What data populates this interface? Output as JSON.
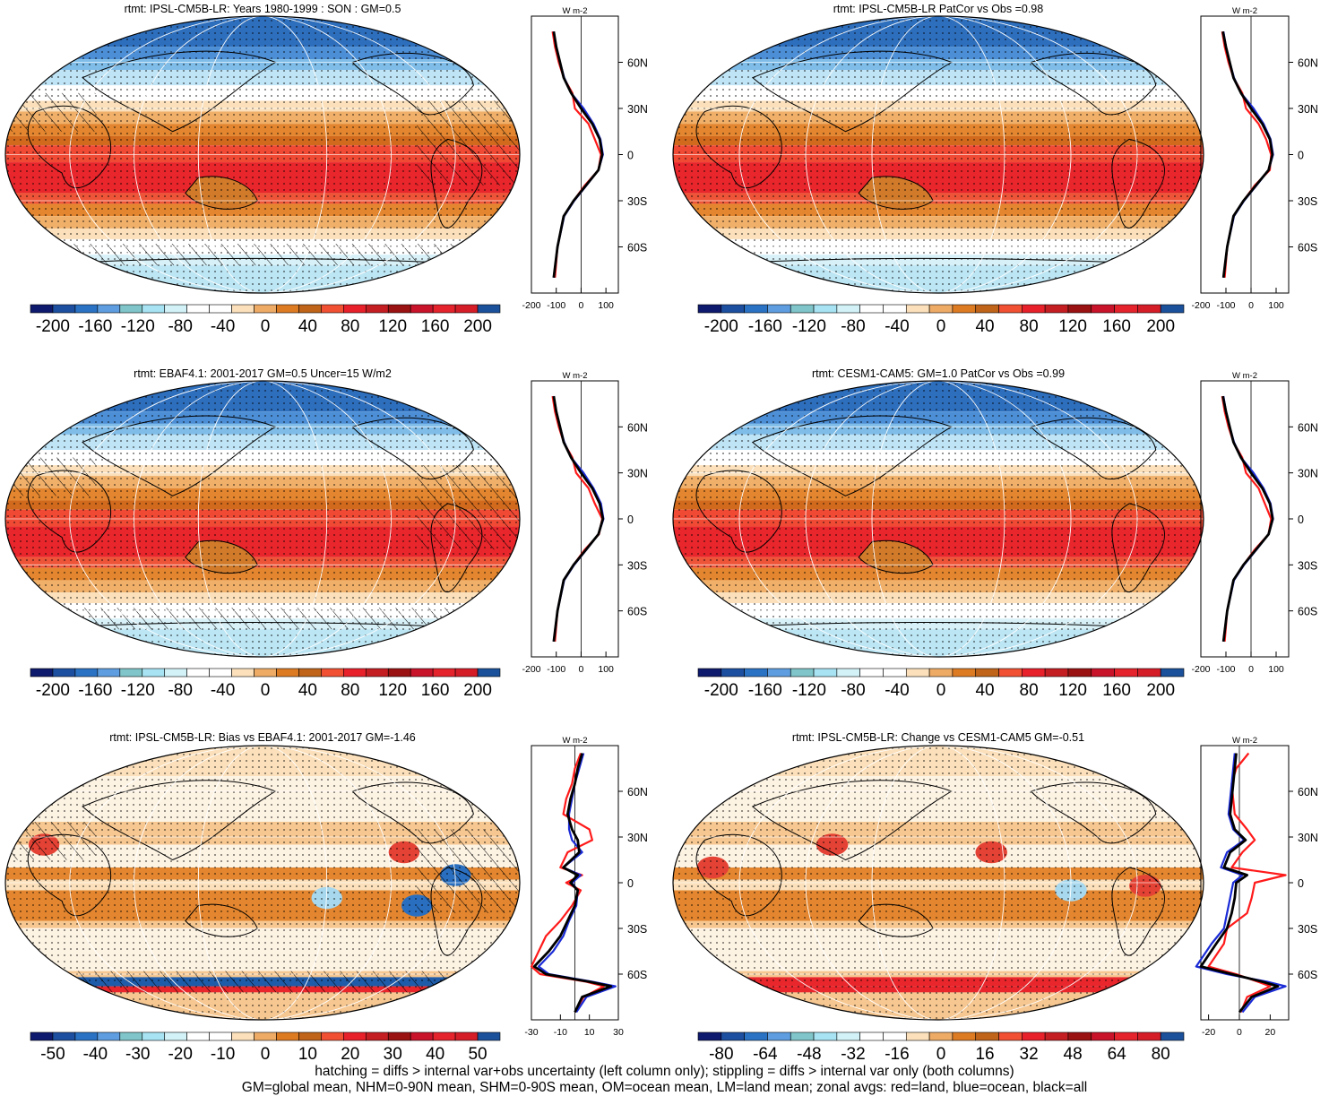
{
  "panels": [
    {
      "title": "rtmt: IPSL-CM5B-LR: Years 1980-1999 : SON : GM=0.5",
      "hatch": true,
      "colorbar_labels": [
        "-200",
        "-160",
        "-120",
        "-80",
        "-40",
        "0",
        "40",
        "80",
        "120",
        "160",
        "200"
      ],
      "profile_xticks": [
        "-200",
        "-100",
        "0",
        "100"
      ],
      "profile_unit": "W m-2"
    },
    {
      "title": "rtmt: IPSL-CM5B-LR PatCor vs Obs =0.98",
      "hatch": false,
      "colorbar_labels": [
        "-200",
        "-160",
        "-120",
        "-80",
        "-40",
        "0",
        "40",
        "80",
        "120",
        "160",
        "200"
      ],
      "profile_xticks": [
        "-200",
        "-100",
        "0",
        "100"
      ],
      "profile_unit": "W m-2"
    },
    {
      "title": "rtmt: EBAF4.1: 2001-2017 GM=0.5 Uncer=15 W/m2",
      "hatch": true,
      "colorbar_labels": [
        "-200",
        "-160",
        "-120",
        "-80",
        "-40",
        "0",
        "40",
        "80",
        "120",
        "160",
        "200"
      ],
      "profile_xticks": [
        "-200",
        "-100",
        "0",
        "100"
      ],
      "profile_unit": "W m-2"
    },
    {
      "title": "rtmt: CESM1-CAM5: GM=1.0 PatCor vs Obs =0.99",
      "hatch": false,
      "colorbar_labels": [
        "-200",
        "-160",
        "-120",
        "-80",
        "-40",
        "0",
        "40",
        "80",
        "120",
        "160",
        "200"
      ],
      "profile_xticks": [
        "-200",
        "-100",
        "0",
        "100"
      ],
      "profile_unit": "W m-2"
    },
    {
      "title": "rtmt: IPSL-CM5B-LR: Bias vs EBAF4.1: 2001-2017  GM=-1.46",
      "hatch": true,
      "colorbar_labels": [
        "-50",
        "-40",
        "-30",
        "-20",
        "-10",
        "0",
        "10",
        "20",
        "30",
        "40",
        "50"
      ],
      "profile_xticks": [
        "-30",
        "-10",
        "10",
        "30"
      ],
      "profile_unit": "W m-2"
    },
    {
      "title": "rtmt: IPSL-CM5B-LR: Change vs CESM1-CAM5 GM=-0.51",
      "hatch": false,
      "colorbar_labels": [
        "-80",
        "-64",
        "-48",
        "-32",
        "-16",
        "0",
        "16",
        "32",
        "48",
        "64",
        "80"
      ],
      "profile_xticks": [
        "-20",
        "0",
        "20"
      ],
      "profile_unit": "W m-2"
    }
  ],
  "lat_labels": [
    "60N",
    "30N",
    "0",
    "30S",
    "60S"
  ],
  "colorbar_colors": [
    "#0e1a6e",
    "#1d4fa0",
    "#2a72c4",
    "#5e9ee0",
    "#7fc5c9",
    "#a7e3f2",
    "#d2f2f8",
    "#ffffff",
    "#ffffff",
    "#fbe0bb",
    "#eeab66",
    "#dd7b22",
    "#bf6419",
    "#f15032",
    "#e8202a",
    "#c51e22",
    "#9a1212",
    "#c8132a",
    "#e4232c",
    "#d51d28",
    "#1b509a"
  ],
  "footer": {
    "line1": "hatching = diffs > internal var+obs uncertainty (left column only); stippling = diffs > internal var only (both columns)",
    "line2": "GM=global mean, NHM=0-90N mean, SHM=0-90S mean, OM=ocean mean, LM=land mean; zonal avgs: red=land, blue=ocean, black=all"
  },
  "chart_data": [
    {
      "type": "line",
      "title": "rtmt: IPSL-CM5B-LR: Years 1980-1999 : SON : GM=0.5",
      "xlabel": "W m-2",
      "y_axis": "latitude",
      "xlim": [
        -200,
        150
      ],
      "ylim": [
        -90,
        90
      ],
      "series": [
        {
          "name": "all",
          "x": [
            -110,
            -100,
            -85,
            -70,
            -40,
            0,
            45,
            75,
            85,
            70,
            20,
            -30,
            -70,
            -95,
            -110
          ],
          "y": [
            80,
            70,
            60,
            50,
            40,
            30,
            20,
            10,
            0,
            -10,
            -20,
            -30,
            -40,
            -60,
            -80
          ]
        },
        {
          "name": "land",
          "x": [
            -115,
            -105,
            -90,
            -70,
            -35,
            -25,
            30,
            55,
            80,
            70,
            15,
            -30,
            -70,
            -95,
            -105
          ],
          "y": [
            80,
            70,
            60,
            50,
            40,
            30,
            20,
            10,
            0,
            -10,
            -20,
            -30,
            -40,
            -60,
            -80
          ]
        },
        {
          "name": "ocean",
          "x": [
            -110,
            -100,
            -85,
            -68,
            -40,
            10,
            50,
            78,
            88,
            70,
            22,
            -28,
            -68,
            -95,
            -110
          ],
          "y": [
            80,
            70,
            60,
            50,
            40,
            30,
            20,
            10,
            0,
            -10,
            -20,
            -30,
            -40,
            -60,
            -80
          ]
        }
      ]
    },
    {
      "type": "line",
      "title": "rtmt: IPSL-CM5B-LR PatCor vs Obs =0.98",
      "xlabel": "W m-2",
      "y_axis": "latitude",
      "xlim": [
        -200,
        150
      ],
      "ylim": [
        -90,
        90
      ],
      "series": [
        {
          "name": "all",
          "x": [
            -112,
            -100,
            -85,
            -70,
            -40,
            0,
            45,
            75,
            85,
            70,
            20,
            -30,
            -70,
            -95,
            -110
          ],
          "y": [
            80,
            70,
            60,
            50,
            40,
            30,
            20,
            10,
            0,
            -10,
            -20,
            -30,
            -40,
            -60,
            -80
          ]
        },
        {
          "name": "land",
          "x": [
            -115,
            -105,
            -90,
            -70,
            -35,
            -20,
            30,
            60,
            80,
            75,
            15,
            -30,
            -70,
            -95,
            -105
          ],
          "y": [
            80,
            70,
            60,
            50,
            40,
            30,
            20,
            10,
            0,
            -10,
            -20,
            -30,
            -40,
            -60,
            -80
          ]
        },
        {
          "name": "ocean",
          "x": [
            -110,
            -100,
            -85,
            -68,
            -40,
            10,
            50,
            78,
            88,
            70,
            22,
            -28,
            -68,
            -95,
            -110
          ],
          "y": [
            80,
            70,
            60,
            50,
            40,
            30,
            20,
            10,
            0,
            -10,
            -20,
            -30,
            -40,
            -60,
            -80
          ]
        }
      ]
    },
    {
      "type": "line",
      "title": "rtmt: EBAF4.1: 2001-2017 GM=0.5 Uncer=15 W/m2",
      "xlabel": "W m-2",
      "y_axis": "latitude",
      "xlim": [
        -200,
        150
      ],
      "ylim": [
        -90,
        90
      ],
      "series": [
        {
          "name": "all",
          "x": [
            -110,
            -100,
            -85,
            -70,
            -40,
            0,
            45,
            75,
            88,
            70,
            20,
            -30,
            -70,
            -95,
            -110
          ],
          "y": [
            80,
            70,
            60,
            50,
            40,
            30,
            20,
            10,
            0,
            -10,
            -20,
            -30,
            -40,
            -60,
            -80
          ]
        },
        {
          "name": "land",
          "x": [
            -115,
            -105,
            -90,
            -70,
            -35,
            -20,
            30,
            55,
            85,
            72,
            15,
            -30,
            -70,
            -95,
            -105
          ],
          "y": [
            80,
            70,
            60,
            50,
            40,
            30,
            20,
            10,
            0,
            -10,
            -20,
            -30,
            -40,
            -60,
            -80
          ]
        },
        {
          "name": "ocean",
          "x": [
            -110,
            -100,
            -85,
            -68,
            -40,
            10,
            50,
            80,
            90,
            70,
            22,
            -28,
            -68,
            -95,
            -110
          ],
          "y": [
            80,
            70,
            60,
            50,
            40,
            30,
            20,
            10,
            0,
            -10,
            -20,
            -30,
            -40,
            -60,
            -80
          ]
        }
      ]
    },
    {
      "type": "line",
      "title": "rtmt: CESM1-CAM5: GM=1.0 PatCor vs Obs =0.99",
      "xlabel": "W m-2",
      "y_axis": "latitude",
      "xlim": [
        -200,
        150
      ],
      "ylim": [
        -90,
        90
      ],
      "series": [
        {
          "name": "all",
          "x": [
            -112,
            -100,
            -85,
            -70,
            -40,
            0,
            45,
            75,
            86,
            70,
            20,
            -30,
            -70,
            -95,
            -110
          ],
          "y": [
            80,
            70,
            60,
            50,
            40,
            30,
            20,
            10,
            0,
            -10,
            -20,
            -30,
            -40,
            -60,
            -80
          ]
        },
        {
          "name": "land",
          "x": [
            -115,
            -105,
            -90,
            -70,
            -35,
            -20,
            30,
            55,
            80,
            70,
            15,
            -30,
            -70,
            -95,
            -105
          ],
          "y": [
            80,
            70,
            60,
            50,
            40,
            30,
            20,
            10,
            0,
            -10,
            -20,
            -30,
            -40,
            -60,
            -80
          ]
        },
        {
          "name": "ocean",
          "x": [
            -110,
            -100,
            -85,
            -68,
            -40,
            10,
            50,
            78,
            88,
            70,
            22,
            -28,
            -68,
            -95,
            -110
          ],
          "y": [
            80,
            70,
            60,
            50,
            40,
            30,
            20,
            10,
            0,
            -10,
            -20,
            -30,
            -40,
            -60,
            -80
          ]
        }
      ]
    },
    {
      "type": "line",
      "title": "rtmt: IPSL-CM5B-LR: Bias vs EBAF4.1: 2001-2017  GM=-1.46",
      "xlabel": "W m-2",
      "y_axis": "latitude",
      "xlim": [
        -30,
        30
      ],
      "ylim": [
        -90,
        90
      ],
      "series": [
        {
          "name": "all",
          "x": [
            5,
            2,
            0,
            -3,
            -5,
            -2,
            2,
            3,
            -8,
            2,
            -3,
            2,
            0,
            -5,
            -10,
            -18,
            -28,
            -20,
            10,
            25,
            5,
            0
          ],
          "y": [
            85,
            75,
            65,
            55,
            45,
            35,
            28,
            20,
            10,
            5,
            0,
            -5,
            -15,
            -25,
            -35,
            -45,
            -55,
            -60,
            -65,
            -68,
            -75,
            -85
          ],
          "_note": "zonal mean bias"
        },
        {
          "name": "land",
          "x": [
            4,
            0,
            -2,
            -6,
            -8,
            10,
            12,
            -5,
            -10,
            5,
            -6,
            4,
            -2,
            -10,
            -20,
            -25,
            -30,
            -24,
            8,
            20,
            6,
            0
          ],
          "y": [
            85,
            75,
            65,
            55,
            45,
            35,
            28,
            20,
            10,
            5,
            0,
            -5,
            -15,
            -25,
            -35,
            -45,
            -55,
            -60,
            -65,
            -68,
            -75,
            -85
          ]
        },
        {
          "name": "ocean",
          "x": [
            6,
            3,
            0,
            -2,
            -4,
            -4,
            -2,
            5,
            -8,
            4,
            -2,
            2,
            1,
            -4,
            -8,
            -15,
            -25,
            -18,
            12,
            28,
            8,
            1
          ],
          "y": [
            85,
            75,
            65,
            55,
            45,
            35,
            28,
            20,
            10,
            5,
            0,
            -5,
            -15,
            -25,
            -35,
            -45,
            -55,
            -60,
            -65,
            -68,
            -75,
            -85
          ]
        }
      ]
    },
    {
      "type": "line",
      "title": "rtmt: IPSL-CM5B-LR: Change vs CESM1-CAM5 GM=-0.51",
      "xlabel": "W m-2",
      "y_axis": "latitude",
      "xlim": [
        -25,
        32
      ],
      "ylim": [
        -90,
        90
      ],
      "series": [
        {
          "name": "all",
          "x": [
            -2,
            -3,
            -4,
            -5,
            -6,
            -3,
            4,
            -6,
            -10,
            5,
            -2,
            -3,
            -5,
            -8,
            -15,
            -25,
            -5,
            15,
            25,
            8,
            0
          ],
          "y": [
            85,
            75,
            65,
            55,
            45,
            35,
            28,
            20,
            10,
            5,
            0,
            -10,
            -20,
            -30,
            -40,
            -55,
            -60,
            -65,
            -68,
            -75,
            -85
          ]
        },
        {
          "name": "land",
          "x": [
            6,
            -2,
            -5,
            -4,
            -3,
            5,
            10,
            2,
            -5,
            30,
            10,
            8,
            5,
            -8,
            -10,
            -20,
            -2,
            12,
            20,
            5,
            1
          ],
          "y": [
            85,
            75,
            65,
            55,
            45,
            35,
            28,
            20,
            10,
            5,
            0,
            -10,
            -20,
            -30,
            -40,
            -55,
            -60,
            -65,
            -68,
            -75,
            -85
          ]
        },
        {
          "name": "ocean",
          "x": [
            -3,
            -4,
            -5,
            -6,
            -7,
            -4,
            3,
            -8,
            -12,
            2,
            -4,
            -6,
            -8,
            -10,
            -18,
            -28,
            -8,
            18,
            30,
            10,
            2
          ],
          "y": [
            85,
            75,
            65,
            55,
            45,
            35,
            28,
            20,
            10,
            5,
            0,
            -10,
            -20,
            -30,
            -40,
            -55,
            -60,
            -65,
            -68,
            -75,
            -85
          ]
        }
      ]
    }
  ]
}
